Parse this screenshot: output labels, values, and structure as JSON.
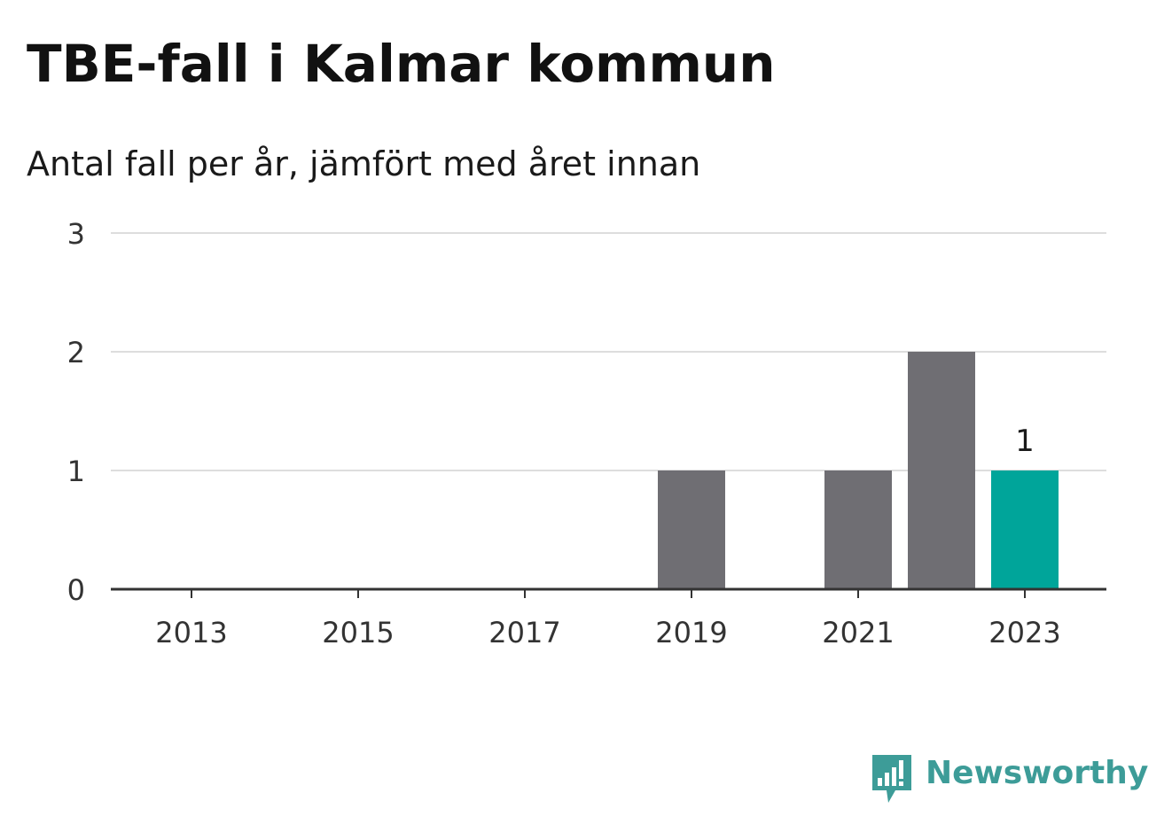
{
  "header": {
    "title": "TBE-fall i Kalmar kommun",
    "subtitle": "Antal fall per år, jämfört med året innan"
  },
  "chart_data": {
    "type": "bar",
    "title": "TBE-fall i Kalmar kommun",
    "subtitle": "Antal fall per år, jämfört med året innan",
    "categories": [
      "2013",
      "2014",
      "2015",
      "2016",
      "2017",
      "2018",
      "2019",
      "2020",
      "2021",
      "2022",
      "2023"
    ],
    "values": [
      0,
      0,
      0,
      0,
      0,
      0,
      1,
      0,
      1,
      2,
      1
    ],
    "x_tick_labels": [
      "2013",
      "2015",
      "2017",
      "2019",
      "2021",
      "2023"
    ],
    "y_ticks": [
      0,
      1,
      2,
      3
    ],
    "ylim": [
      0,
      3
    ],
    "xlabel": "",
    "ylabel": "",
    "grid": true,
    "highlight_category": "2023",
    "data_labels": [
      {
        "category": "2023",
        "text": "1"
      }
    ],
    "colors": {
      "bar": "#6f6e73",
      "highlight": "#00a59a",
      "grid": "#dddddd",
      "axis": "#333333",
      "tick_text": "#333333"
    }
  },
  "branding": {
    "logo_text": "Newsworthy",
    "logo_icon": "newsworthy-bar-chart-icon",
    "logo_color": "#3d9c98"
  }
}
